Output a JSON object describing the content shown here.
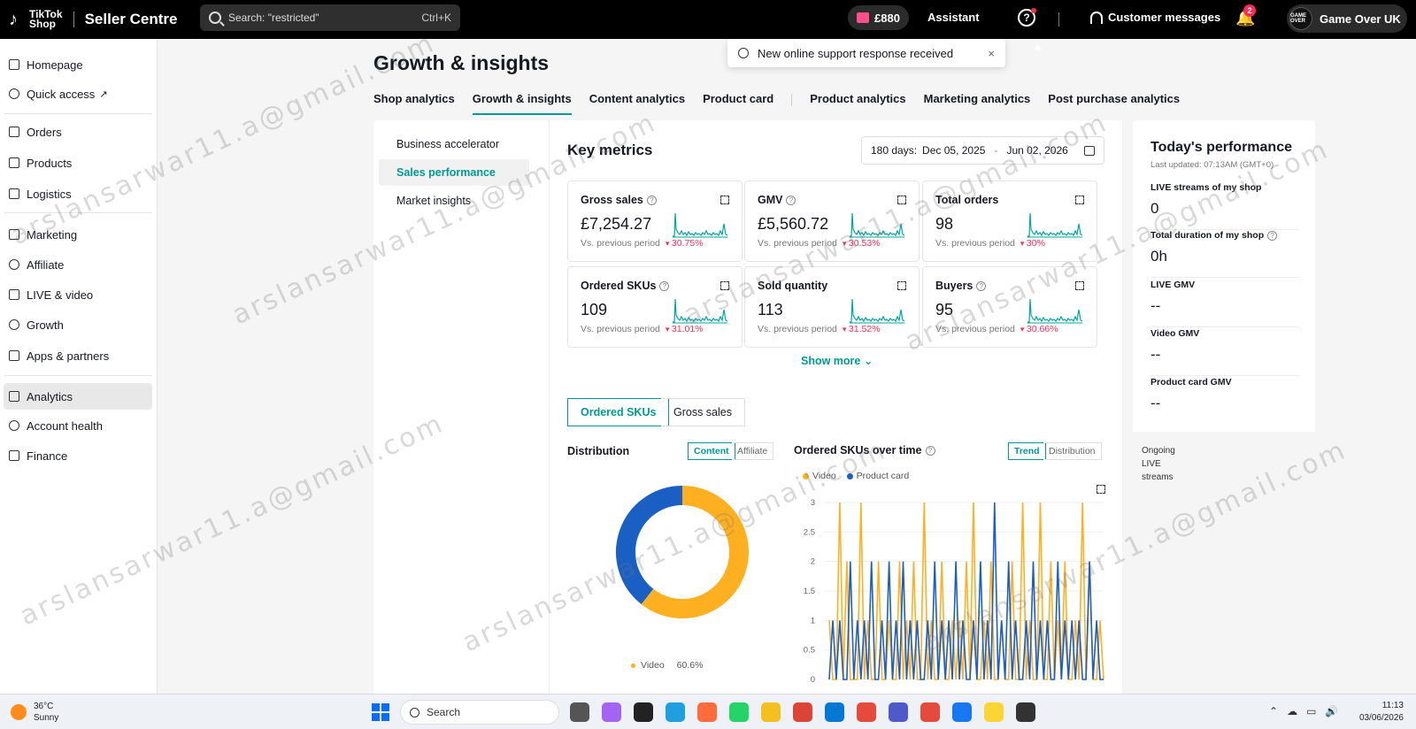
{
  "topbar": {
    "logo_line1": "TikTok",
    "logo_line2": "Shop",
    "app_name": "Seller Centre",
    "search_value": "Search: \"restricted\"",
    "search_shortcut": "Ctrl+K",
    "balance": "£880",
    "assistant_label": "Assistant",
    "customer_messages_label": "Customer messages",
    "notification_count": "2",
    "shop_name": "Game Over UK",
    "avatar_text": "GAME OVER"
  },
  "toast": {
    "message": "New online support response received",
    "close": "×"
  },
  "sidebar": {
    "items": [
      {
        "label": "Homepage",
        "icon": "home-icon"
      },
      {
        "label": "Quick access",
        "icon": "quick-access-icon"
      },
      {
        "label": "Orders",
        "icon": "orders-icon"
      },
      {
        "label": "Products",
        "icon": "products-icon"
      },
      {
        "label": "Logistics",
        "icon": "truck-icon"
      },
      {
        "label": "Marketing",
        "icon": "megaphone-icon"
      },
      {
        "label": "Affiliate",
        "icon": "affiliate-icon"
      },
      {
        "label": "LIVE & video",
        "icon": "video-icon"
      },
      {
        "label": "Growth",
        "icon": "growth-icon"
      },
      {
        "label": "Apps & partners",
        "icon": "apps-icon"
      },
      {
        "label": "Analytics",
        "icon": "analytics-icon"
      },
      {
        "label": "Account health",
        "icon": "trophy-icon"
      },
      {
        "label": "Finance",
        "icon": "finance-icon"
      }
    ],
    "active": "Analytics"
  },
  "page": {
    "title": "Growth & insights",
    "tabs": [
      "Shop analytics",
      "Growth & insights",
      "Content analytics",
      "Product card",
      "Product analytics",
      "Marketing analytics",
      "Post purchase analytics"
    ],
    "active_tab": "Growth & insights"
  },
  "subnav": {
    "items": [
      "Business accelerator",
      "Sales performance",
      "Market insights"
    ],
    "active": "Sales performance"
  },
  "key_metrics": {
    "title": "Key metrics",
    "range_label": "180 days:",
    "range_start": "Dec 05, 2025",
    "range_sep": "-",
    "range_end": "Jun 02, 2026",
    "vs_label": "Vs. previous period",
    "cards": [
      {
        "title": "Gross sales",
        "has_help": true,
        "value": "£7,254.27",
        "change": "30.75%"
      },
      {
        "title": "GMV",
        "has_help": true,
        "value": "£5,560.72",
        "change": "30.53%"
      },
      {
        "title": "Total orders",
        "has_help": false,
        "value": "98",
        "change": "30%"
      },
      {
        "title": "Ordered SKUs",
        "has_help": true,
        "value": "109",
        "change": "31.01%"
      },
      {
        "title": "Sold quantity",
        "has_help": false,
        "value": "113",
        "change": "31.52%"
      },
      {
        "title": "Buyers",
        "has_help": true,
        "value": "95",
        "change": "30.66%"
      }
    ],
    "show_more": "Show more ⌄"
  },
  "breakdown": {
    "segments": [
      "Ordered SKUs",
      "Gross sales"
    ],
    "active_segment": "Ordered SKUs",
    "distribution_title": "Distribution",
    "distribution_tabs": [
      "Content",
      "Affiliate"
    ],
    "over_time_title": "Ordered SKUs over time",
    "over_time_tabs": [
      "Trend",
      "Distribution"
    ],
    "donut_legend_label": "Video",
    "donut_legend_pct": "60.6%"
  },
  "chart_data": [
    {
      "type": "pie",
      "labels": [
        "Video",
        "Product card"
      ],
      "values": [
        60.6,
        39.4
      ],
      "colors": [
        "#ffb020",
        "#1a5fc4"
      ]
    },
    {
      "type": "line",
      "title": "Ordered SKUs over time",
      "ylim": [
        0,
        3
      ],
      "yticks": [
        "0",
        "0.5",
        "1",
        "1.5",
        "2",
        "2.5",
        "3"
      ],
      "series": [
        {
          "name": "Video",
          "color": "#ffb020",
          "values": [
            1,
            0,
            0,
            3,
            0,
            2,
            0,
            0,
            0,
            3,
            0,
            1,
            0,
            0,
            2,
            0,
            0,
            1,
            0,
            0,
            2,
            0,
            1,
            0,
            2,
            0,
            0,
            3,
            0,
            1,
            0,
            0,
            2,
            0,
            0,
            1,
            0,
            1,
            0,
            2,
            0,
            3,
            0,
            0,
            1,
            0,
            2,
            0,
            0,
            1,
            0,
            0,
            2,
            0,
            0,
            3,
            0,
            1,
            0,
            0,
            3,
            0,
            0,
            2,
            0,
            1,
            0,
            2,
            0,
            0,
            1,
            0,
            3,
            0,
            2,
            0,
            0,
            1,
            0
          ]
        },
        {
          "name": "Product card",
          "color": "#1a5fc4",
          "values": [
            0,
            1,
            0,
            1,
            0,
            0,
            2,
            0,
            1,
            0,
            1,
            0,
            2,
            0,
            0,
            1,
            0,
            2,
            0,
            1,
            0,
            2,
            0,
            1,
            0,
            1,
            0,
            0,
            1,
            0,
            2,
            0,
            1,
            0,
            1,
            0,
            2,
            0,
            1,
            0,
            0,
            1,
            0,
            2,
            0,
            1,
            0,
            3,
            0,
            1,
            0,
            2,
            0,
            1,
            0,
            0,
            1,
            0,
            2,
            0,
            1,
            0,
            1,
            0,
            0,
            2,
            0,
            1,
            0,
            1,
            0,
            1,
            0,
            0,
            2,
            0,
            1,
            0,
            0
          ]
        }
      ]
    }
  ],
  "todays_performance": {
    "title": "Today's performance",
    "last_updated": "Last updated: 07:13AM (GMT+0)",
    "items": [
      {
        "label": "LIVE streams of my shop",
        "value": "0",
        "has_help": false
      },
      {
        "label": "Total duration of my shop",
        "value": "0h",
        "has_help": true
      },
      {
        "label": "LIVE GMV",
        "value": "--",
        "has_help": false
      },
      {
        "label": "Video GMV",
        "value": "--",
        "has_help": false
      },
      {
        "label": "Product card GMV",
        "value": "--",
        "has_help": false
      }
    ],
    "ongoing": "Ongoing LIVE streams"
  },
  "taskbar": {
    "temperature": "36°C",
    "condition": "Sunny",
    "search_label": "Search",
    "time": "11:13",
    "date": "03/06/2026"
  },
  "watermark": "arslansarwar11.a@gmail.com"
}
